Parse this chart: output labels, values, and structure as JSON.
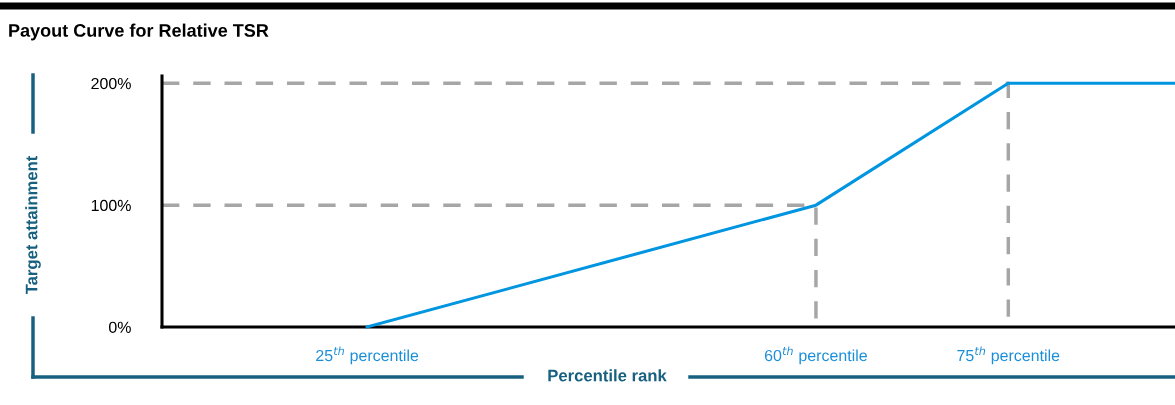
{
  "chart_data": {
    "type": "line",
    "title": "Payout Curve for Relative TSR",
    "xlabel": "Percentile rank",
    "ylabel": "Target attainment",
    "series": [
      {
        "color": "#0095e0",
        "x": [
          25,
          60,
          75,
          88
        ],
        "values": [
          0,
          100,
          200,
          200
        ]
      },
      {
        "color": "#a6a6a6",
        "line_style": "dashed",
        "x": [
          9,
          60,
          60
        ],
        "values": [
          100,
          100,
          0
        ]
      },
      {
        "color": "#a6a6a6",
        "line_style": "dashed",
        "x": [
          9,
          75,
          75
        ],
        "values": [
          200,
          200,
          0
        ]
      }
    ],
    "xlim": [
      9,
      88
    ],
    "xticks": [
      {
        "value": 25,
        "label": "25$^{th}$ percentile"
      },
      {
        "value": 60,
        "label": "60$^{th}$ percentile"
      },
      {
        "value": 75,
        "label": "75$^{th}$ percentile"
      }
    ],
    "ylim": [
      0,
      206
    ],
    "yticks": [
      {
        "value": 0,
        "label": "0%"
      },
      {
        "value": 100,
        "label": "100%"
      },
      {
        "value": 200,
        "label": "200%"
      }
    ],
    "grid": false,
    "legend": false,
    "marker": "none",
    "line_style": "solid"
  }
}
